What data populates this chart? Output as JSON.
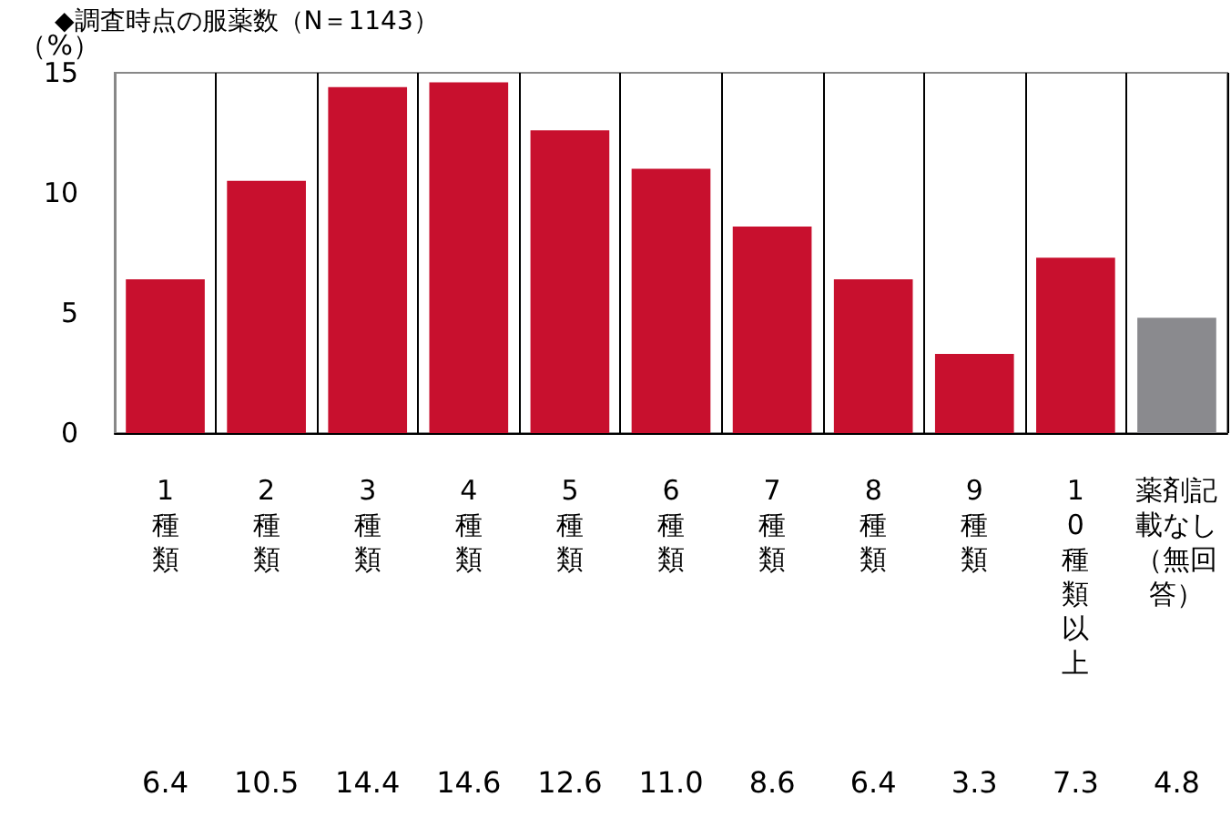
{
  "chart_data": {
    "type": "bar",
    "title": "◆調査時点の服薬数（N＝1143）",
    "ylabel": "（%）",
    "categories": [
      "1種類",
      "2種類",
      "3種類",
      "4種類",
      "5種類",
      "6種類",
      "7種類",
      "8種類",
      "9種類",
      "10種類以上",
      "薬剤記載なし（無回答）"
    ],
    "values": [
      6.4,
      10.5,
      14.4,
      14.6,
      12.6,
      11.0,
      8.6,
      6.4,
      3.3,
      7.3,
      4.8
    ],
    "colors": [
      "#c8102e",
      "#c8102e",
      "#c8102e",
      "#c8102e",
      "#c8102e",
      "#c8102e",
      "#c8102e",
      "#c8102e",
      "#c8102e",
      "#c8102e",
      "#8a8a8e"
    ],
    "ylim": [
      0,
      15
    ],
    "yticks": [
      0,
      5,
      10,
      15
    ],
    "value_labels": [
      "6.4",
      "10.5",
      "14.4",
      "14.6",
      "12.6",
      "11.0",
      "8.6",
      "6.4",
      "3.3",
      "7.3",
      "4.8"
    ],
    "grid": false
  }
}
